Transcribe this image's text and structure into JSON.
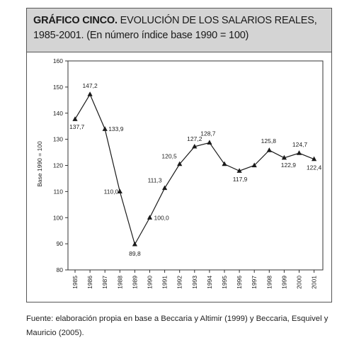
{
  "title": {
    "bold": "GRÁFICO CINCO.",
    "text": " EVOLUCIÓN DE LOS SALARIOS REALES, 1985-2001. (En número índice base 1990 = 100)"
  },
  "source": "Fuente: elaboración propia en base a Beccaria y Altimir (1999) y Beccaria, Esquivel y Mauricio (2005).",
  "chart_data": {
    "type": "line",
    "x": [
      "1985",
      "1986",
      "1987",
      "1988",
      "1989",
      "1990",
      "1991",
      "1992",
      "1993",
      "1994",
      "1995",
      "1996",
      "1997",
      "1998",
      "1999",
      "2000",
      "2001"
    ],
    "series": [
      {
        "values": [
          137.7,
          147.2,
          133.9,
          110.0,
          89.8,
          100.0,
          111.3,
          120.5,
          127.2,
          128.7,
          120.5,
          117.9,
          120.0,
          125.8,
          122.9,
          124.7,
          122.4
        ]
      }
    ],
    "data_labels": [
      {
        "x": "1985",
        "text": "137,7"
      },
      {
        "x": "1986",
        "text": "147,2"
      },
      {
        "x": "1987",
        "text": "133,9"
      },
      {
        "x": "1988",
        "text": "110,0"
      },
      {
        "x": "1989",
        "text": "89,8"
      },
      {
        "x": "1990",
        "text": "100,0"
      },
      {
        "x": "1991",
        "text": "111,3"
      },
      {
        "x": "1992",
        "text": "120,5"
      },
      {
        "x": "1993",
        "text": "127,2"
      },
      {
        "x": "1994",
        "text": "128,7"
      },
      {
        "x": "1996",
        "text": "117,9"
      },
      {
        "x": "1998",
        "text": "125,8"
      },
      {
        "x": "1999",
        "text": "122,9"
      },
      {
        "x": "2000",
        "text": "124,7"
      },
      {
        "x": "2001",
        "text": "122,4"
      }
    ],
    "ylabel": "Base 1990 = 100",
    "xlabel": "",
    "ylim": [
      80,
      160
    ],
    "yticks": [
      80,
      90,
      100,
      110,
      120,
      130,
      140,
      150,
      160
    ],
    "grid": false,
    "marker": "triangle",
    "line_color": "#1a1a1a"
  }
}
